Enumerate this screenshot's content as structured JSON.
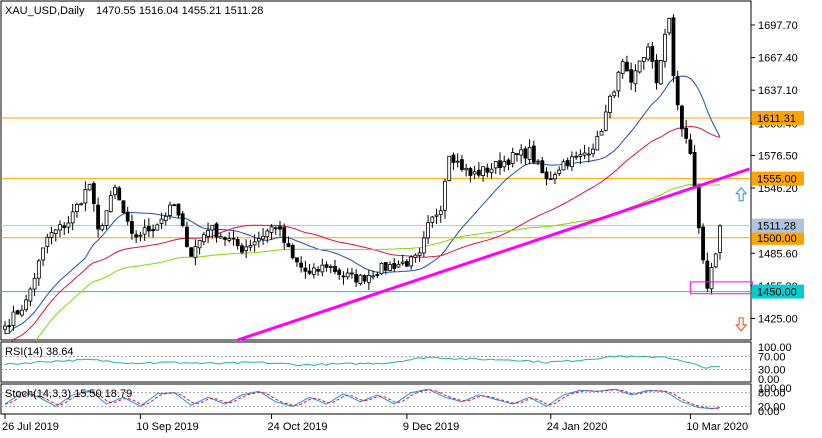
{
  "chart_data": {
    "type": "candlestick",
    "title": "XAU_USD,Daily",
    "ohlc_readout": "1470.55 1516.04 1455.21 1511.28",
    "y_ticks": [
      "1697.70",
      "1667.40",
      "1637.10",
      "1606.40",
      "1576.50",
      "1546.20",
      "1485.60",
      "1455.30",
      "1425.00"
    ],
    "ylim": [
      1405,
      1720
    ],
    "x_ticks": [
      {
        "label": "26 Jul 2019",
        "index": 0
      },
      {
        "label": "10 Sep 2019",
        "index": 32
      },
      {
        "label": "24 Oct 2019",
        "index": 63
      },
      {
        "label": "9 Dec 2019",
        "index": 95
      },
      {
        "label": "24 Jan 2020",
        "index": 129
      },
      {
        "label": "10 Mar 2020",
        "index": 162
      }
    ],
    "n_bars": 170,
    "close_anchors": [
      [
        0,
        1418
      ],
      [
        5,
        1440
      ],
      [
        10,
        1500
      ],
      [
        15,
        1515
      ],
      [
        20,
        1550
      ],
      [
        22,
        1505
      ],
      [
        26,
        1545
      ],
      [
        30,
        1500
      ],
      [
        35,
        1510
      ],
      [
        40,
        1530
      ],
      [
        44,
        1485
      ],
      [
        48,
        1510
      ],
      [
        52,
        1500
      ],
      [
        56,
        1490
      ],
      [
        60,
        1500
      ],
      [
        64,
        1512
      ],
      [
        68,
        1480
      ],
      [
        72,
        1465
      ],
      [
        76,
        1475
      ],
      [
        80,
        1465
      ],
      [
        84,
        1462
      ],
      [
        88,
        1470
      ],
      [
        92,
        1475
      ],
      [
        96,
        1478
      ],
      [
        98,
        1482
      ],
      [
        100,
        1510
      ],
      [
        103,
        1530
      ],
      [
        105,
        1580
      ],
      [
        107,
        1570
      ],
      [
        110,
        1558
      ],
      [
        115,
        1565
      ],
      [
        120,
        1575
      ],
      [
        124,
        1580
      ],
      [
        128,
        1553
      ],
      [
        132,
        1570
      ],
      [
        136,
        1575
      ],
      [
        140,
        1590
      ],
      [
        144,
        1640
      ],
      [
        146,
        1660
      ],
      [
        148,
        1640
      ],
      [
        150,
        1665
      ],
      [
        152,
        1675
      ],
      [
        154,
        1645
      ],
      [
        156,
        1690
      ],
      [
        157,
        1700
      ],
      [
        158,
        1650
      ],
      [
        160,
        1600
      ],
      [
        162,
        1580
      ],
      [
        164,
        1510
      ],
      [
        166,
        1455
      ],
      [
        168,
        1480
      ],
      [
        169,
        1511
      ]
    ],
    "horizontal_levels": [
      {
        "value": 1611.31,
        "label": "1611.31",
        "color": "#FFA500"
      },
      {
        "value": 1555.0,
        "label": "1555.00",
        "color": "#FFA500"
      },
      {
        "value": 1500.0,
        "label": "1500.00",
        "color": "#FFA500"
      },
      {
        "value": 1450.0,
        "label": "1450.00",
        "color": "#00CED1"
      },
      {
        "value": 1511.28,
        "label": "1511.28",
        "color": "#B0C4DE"
      }
    ],
    "trendline": {
      "color": "#FF00FF",
      "from": [
        55,
        1405
      ],
      "to": [
        176,
        1564
      ]
    },
    "ellipse_box": {
      "x_index": 162,
      "value_top": 1459,
      "value_bottom": 1448,
      "color": "#FF00FF"
    },
    "arrows": [
      {
        "direction": "up",
        "x_index": 174,
        "value": 1540,
        "color": "#1E90FF"
      },
      {
        "direction": "down",
        "x_index": 174,
        "value": 1420,
        "color": "#FF4500"
      }
    ],
    "moving_averages": [
      {
        "period": 20,
        "color": "#1E50B4"
      },
      {
        "period": 50,
        "color": "#DC143C"
      },
      {
        "period": 100,
        "color": "#7CDC00"
      }
    ],
    "rsi": {
      "label": "RSI(14) 38.64",
      "ticks": [
        "100.00",
        "70.00",
        "30.00",
        "0.00"
      ],
      "ylim": [
        0,
        100
      ],
      "color": "#20B2AA",
      "anchors": [
        [
          0,
          45
        ],
        [
          10,
          55
        ],
        [
          20,
          60
        ],
        [
          30,
          50
        ],
        [
          40,
          52
        ],
        [
          50,
          48
        ],
        [
          60,
          52
        ],
        [
          70,
          44
        ],
        [
          80,
          47
        ],
        [
          90,
          50
        ],
        [
          100,
          68
        ],
        [
          110,
          62
        ],
        [
          120,
          60
        ],
        [
          128,
          52
        ],
        [
          135,
          58
        ],
        [
          145,
          72
        ],
        [
          150,
          68
        ],
        [
          156,
          70
        ],
        [
          160,
          55
        ],
        [
          164,
          42
        ],
        [
          166,
          35
        ],
        [
          169,
          38.64
        ]
      ]
    },
    "stoch": {
      "label": "Stoch(14,3,3) 15.50 18.79",
      "ticks": [
        "100.00",
        "80.00",
        "20.00",
        "0.00"
      ],
      "ylim": [
        0,
        100
      ],
      "main_color": "#1E90FF",
      "signal_color": "#DC143C",
      "anchors": [
        [
          0,
          30
        ],
        [
          4,
          80
        ],
        [
          8,
          60
        ],
        [
          12,
          20
        ],
        [
          16,
          70
        ],
        [
          20,
          90
        ],
        [
          24,
          30
        ],
        [
          28,
          60
        ],
        [
          32,
          20
        ],
        [
          36,
          75
        ],
        [
          40,
          80
        ],
        [
          44,
          25
        ],
        [
          48,
          60
        ],
        [
          52,
          30
        ],
        [
          56,
          70
        ],
        [
          60,
          85
        ],
        [
          64,
          40
        ],
        [
          68,
          20
        ],
        [
          72,
          60
        ],
        [
          76,
          30
        ],
        [
          80,
          75
        ],
        [
          84,
          40
        ],
        [
          88,
          70
        ],
        [
          92,
          30
        ],
        [
          96,
          80
        ],
        [
          100,
          95
        ],
        [
          104,
          60
        ],
        [
          108,
          40
        ],
        [
          112,
          70
        ],
        [
          116,
          50
        ],
        [
          120,
          30
        ],
        [
          124,
          60
        ],
        [
          128,
          20
        ],
        [
          132,
          70
        ],
        [
          136,
          90
        ],
        [
          140,
          85
        ],
        [
          144,
          95
        ],
        [
          148,
          70
        ],
        [
          152,
          90
        ],
        [
          156,
          85
        ],
        [
          160,
          40
        ],
        [
          164,
          15
        ],
        [
          167,
          10
        ],
        [
          169,
          15.5
        ]
      ]
    }
  }
}
